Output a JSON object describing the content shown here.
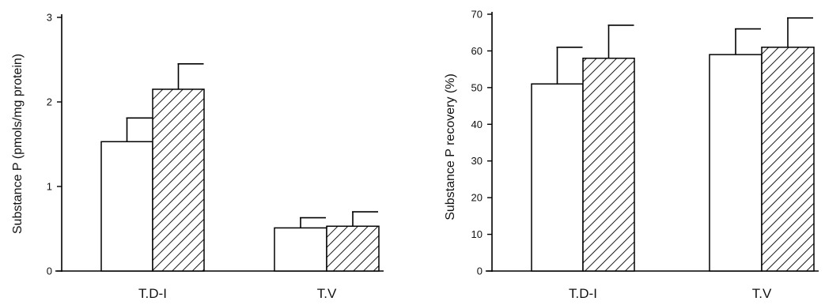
{
  "chart_data": [
    {
      "type": "bar",
      "categories": [
        "T.D-I",
        "T.V"
      ],
      "ylabel": "Substance P (pmols/mg protein)",
      "ylim": [
        0,
        3
      ],
      "yticks": [
        "0",
        "1",
        "2",
        "3"
      ],
      "series": [
        {
          "style": "open",
          "values": [
            1.53,
            0.51
          ],
          "errors": [
            0.28,
            0.12
          ]
        },
        {
          "style": "hatched",
          "values": [
            2.15,
            0.53
          ],
          "errors": [
            0.3,
            0.17
          ]
        }
      ],
      "colors": {
        "bar_open": "#ffffff",
        "bar_hatched": "#ffffff",
        "stroke": "#000000"
      }
    },
    {
      "type": "bar",
      "categories": [
        "T.D-I",
        "T.V"
      ],
      "ylabel": "Substance P recovery (%)",
      "ylim": [
        0,
        70
      ],
      "yticks": [
        "0",
        "10",
        "20",
        "30",
        "40",
        "50",
        "60",
        "70"
      ],
      "series": [
        {
          "style": "open",
          "values": [
            51,
            59
          ],
          "errors": [
            10,
            7
          ]
        },
        {
          "style": "hatched",
          "values": [
            58,
            61
          ],
          "errors": [
            9,
            8
          ]
        }
      ],
      "colors": {
        "bar_open": "#ffffff",
        "bar_hatched": "#ffffff",
        "stroke": "#000000"
      }
    }
  ]
}
